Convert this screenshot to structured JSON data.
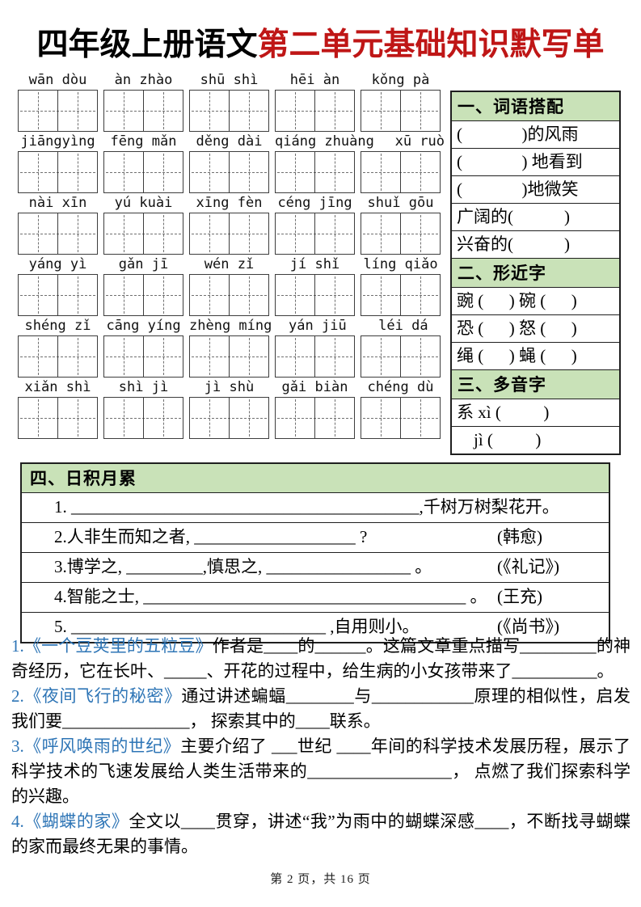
{
  "title": {
    "prefix": "四年级上册语文",
    "highlight": "第二单元基础知识默写单"
  },
  "pinyin_rows": [
    [
      "wān dòu",
      "àn zhào",
      "shū shì",
      "hēi àn",
      "kǒng pà"
    ],
    [
      "jiāngyìng",
      "fēng mǎn",
      "děng dài",
      "qiáng zhuàng",
      "xū  ruò"
    ],
    [
      "nài xīn",
      "yú kuài",
      "xīng fèn",
      "céng jīng",
      "shuǐ gōu"
    ],
    [
      "yáng yì",
      "gǎn jī",
      "wén  zǐ",
      "jí  shǐ",
      "líng qiǎo"
    ],
    [
      "shéng zǐ",
      "cāng yíng",
      "zhèng míng",
      "yán jiū",
      "léi dá"
    ],
    [
      "xiǎn shì",
      "shì jì",
      "jì shù",
      "gǎi biàn",
      "chéng dù"
    ]
  ],
  "sidebar": {
    "sections": [
      {
        "header": "一、词语搭配",
        "rows": [
          "(              )的风雨",
          "(              ) 地看到",
          "(              )地微笑",
          "广阔的(            )",
          "兴奋的(            )"
        ]
      },
      {
        "header": "二、形近字",
        "rows": [
          "豌 (      ) 碗 (      )",
          "恐 (      ) 怒 (      )",
          "绳 (      ) 蝇 (      )"
        ]
      },
      {
        "header": "三、多音字",
        "rows": [
          "系 xì (          )",
          "    jì (          )"
        ]
      }
    ]
  },
  "accumulation": {
    "header": "四、日积月累",
    "rows": [
      {
        "text": "1. _________________________________________,千树万树梨花开。",
        "source": ""
      },
      {
        "text": "2.人非生而知之者, ___________________ ?",
        "source": "(韩愈)"
      },
      {
        "text": "3.博学之, _________,慎思之, _________________ 。",
        "source": "(《礼记》)"
      },
      {
        "text": "4.智能之士, ______________________________________ 。",
        "source": "(王充)"
      },
      {
        "text": "5. ______________________________ ,自用则小。",
        "source": "(《尚书》)"
      }
    ]
  },
  "paragraphs": [
    {
      "title": "1.《一个豆荚里的五粒豆》",
      "body": "作者是____的______。这篇文章重点描写_________的神奇经历，它在长叶、_____、开花的过程中，给生病的小女孩带来了__________。"
    },
    {
      "title": "2.《夜间飞行的秘密》",
      "body": "通过讲述蝙蝠________与____________原理的相似性，启发我们要_______________， 探索其中的____联系。"
    },
    {
      "title": "3.《呼风唤雨的世纪》",
      "body": "主要介绍了 ___世纪 ____年间的科学技术发展历程，展示了科学技术的飞速发展给人类生活带来的_________________， 点燃了我们探索科学的兴趣。"
    },
    {
      "title": "4.《蝴蝶的家》",
      "body": "全文以____贯穿，讲述“我”为雨中的蝴蝶深感____，不断找寻蝴蝶的家而最终无果的事情。"
    }
  ],
  "footer": "第 2 页，共 16 页",
  "colors": {
    "header_green": "#c9e2b8",
    "title_red": "#bf1616",
    "lesson_blue": "#2e75b6"
  }
}
